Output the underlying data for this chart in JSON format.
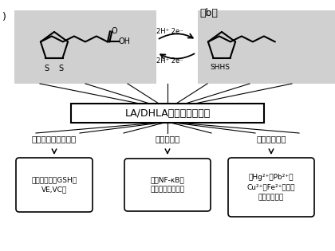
{
  "bg_color": "#ffffff",
  "white": "#ffffff",
  "black": "#000000",
  "gray_box": "#d0d0d0",
  "title_box_text": "LA/DHLA的内在化学属性",
  "branch_labels": [
    "再生内源性抗氧化剂",
    "抗炎症因子",
    "整合金属离子"
  ],
  "box1_lines": [
    "再生内源性的GSH，",
    "VE,VC等"
  ],
  "box2_lines": [
    "抑制NF-κB，",
    "降低促炎因子释放"
  ],
  "box3_lines": [
    "与Hg²⁺，Pb²⁺，",
    "Cu²⁺，Fe²⁺等金属",
    "离子稳定结合"
  ],
  "reaction_top": "2H⁺ 2e⁻",
  "reaction_bottom": "2H⁺ 2e⁻",
  "label_a": ")",
  "label_b": "（b）",
  "label_shhs": "SHHS"
}
